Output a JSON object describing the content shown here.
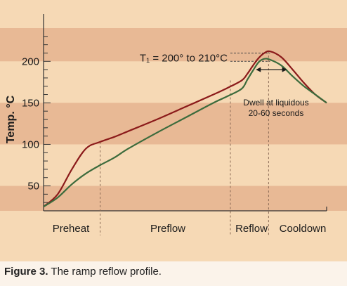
{
  "chart_data": {
    "type": "line",
    "ylabel": "Temp. °C",
    "xlabel": "",
    "ylim": [
      20,
      240
    ],
    "xlim": [
      0,
      100
    ],
    "yticks": [
      50,
      100,
      150,
      200
    ],
    "grid": false,
    "bands": [
      [
        0,
        50
      ],
      [
        100,
        150
      ],
      [
        200,
        250
      ]
    ],
    "series": [
      {
        "color": "#8b1a1a",
        "x": [
          0,
          5,
          10,
          15,
          20,
          25,
          30,
          40,
          50,
          60,
          65,
          70,
          72,
          74,
          76,
          78,
          80,
          84,
          88,
          92,
          96,
          100
        ],
        "y": [
          25,
          40,
          70,
          95,
          103,
          109,
          116,
          130,
          145,
          160,
          168,
          177,
          185,
          195,
          204,
          210,
          212,
          205,
          190,
          174,
          160,
          150
        ]
      },
      {
        "color": "#3c6b3c",
        "x": [
          0,
          5,
          10,
          15,
          20,
          25,
          30,
          40,
          50,
          60,
          65,
          70,
          72,
          74,
          76,
          78,
          80,
          84,
          88,
          92,
          96,
          100
        ],
        "y": [
          25,
          36,
          52,
          65,
          75,
          84,
          95,
          114,
          132,
          150,
          158,
          167,
          178,
          189,
          199,
          203,
          202,
          195,
          182,
          170,
          160,
          150
        ]
      }
    ],
    "phase_dividers_x": [
      20,
      66,
      79.5
    ],
    "phases": [
      "Preheat",
      "Preflow",
      "Reflow",
      "Cooldown"
    ],
    "peak_annotation": "T₁ = 200° to 210°C",
    "peak_levels": [
      210,
      200
    ],
    "dwell_arrow_x": [
      75,
      86
    ],
    "dwell_arrow_y": 190,
    "dwell_label_lines": [
      "Dwell at liquidous",
      "20-60 seconds"
    ]
  },
  "caption": {
    "label": "Figure 3.",
    "text": " The ramp reflow profile."
  },
  "colors": {
    "background": "#f6d9b5",
    "band": "#e8b995",
    "text": "#1a1a1a"
  }
}
